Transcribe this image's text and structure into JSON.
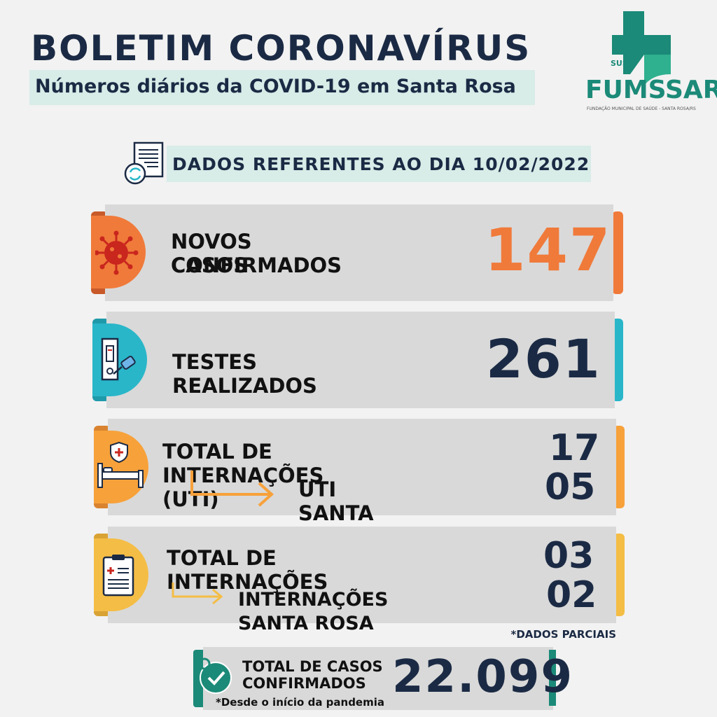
{
  "header": {
    "title": "BOLETIM CORONAVÍRUS",
    "subtitle": "Números diários da COVID-19 em Santa Rosa"
  },
  "logo": {
    "sus": "SUS",
    "name": "FUMSSAR",
    "subtitle": "FUNDAÇÃO MUNICIPAL DE SAÚDE - SANTA ROSA/RS"
  },
  "date_banner": {
    "text": "DADOS REFERENTES AO DIA 10/02/2022",
    "icon": "document-refresh-icon"
  },
  "cards": {
    "new_cases": {
      "label_line1": "NOVOS CASOS",
      "label_line2": "CONFIRMADOS",
      "value": "147",
      "icon": "virus-icon",
      "color": "#f07a3a"
    },
    "tests": {
      "label": "TESTES REALIZADOS",
      "value": "261",
      "icon": "test-kit-icon",
      "color": "#29b6c9"
    },
    "icu": {
      "label": "TOTAL DE INTERNAÇÕES (UTI)",
      "value": "17",
      "sub_label": "UTI SANTA ROSA",
      "sub_value": "05",
      "icon": "hospital-bed-icon",
      "color": "#f7a13a"
    },
    "hospital": {
      "label": "TOTAL DE INTERNAÇÕES",
      "value": "03",
      "sub_label": "INTERNAÇÕES SANTA ROSA",
      "sub_value": "02",
      "icon": "clipboard-icon",
      "color": "#f4bd45"
    }
  },
  "partial_note": "*DADOS PARCIAIS",
  "total": {
    "label_line1": "TOTAL DE CASOS",
    "label_line2": "CONFIRMADOS",
    "value": "22.099",
    "note": "*Desde o início da pandemia",
    "icon": "check-badge-icon",
    "color": "#1b8a78"
  }
}
